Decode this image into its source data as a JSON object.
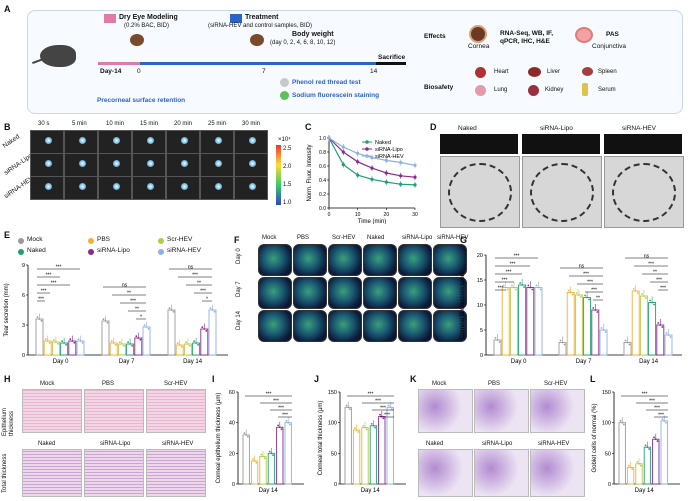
{
  "panels": {
    "A": "A",
    "B": "B",
    "C": "C",
    "D": "D",
    "E": "E",
    "F": "F",
    "G": "G",
    "H": "H",
    "I": "I",
    "J": "J",
    "K": "K",
    "L": "L"
  },
  "schema": {
    "dry_eye": "Dry Eye Modeling",
    "dry_eye_sub": "(0.2% BAC, BID)",
    "treatment": "Treatment",
    "treatment_sub": "(siRNA-HEV and control samples, BID)",
    "body_weight": "Body weight",
    "body_weight_sub": "(day 0, 2, 4, 6, 8, 10, 12)",
    "day_minus14": "Day-14",
    "day0": "0",
    "day7": "7",
    "day14": "14",
    "sacrifice": "Sacrifice",
    "precorneal": "Precorneal surface retention",
    "phenol": "Phenol red thread test",
    "fluor": "Sodium fluorescein staining",
    "effects": "Effects",
    "biosafety": "Biosafety",
    "cornea": "Cornea",
    "assays": "RNA-Seq, WB, IF,",
    "assays2": "qPCR, IHC, H&E",
    "pas": "PAS",
    "conjunctiva": "Conjunctiva",
    "heart": "Heart",
    "liver": "Liver",
    "spleen": "Spleen",
    "lung": "Lung",
    "kidney": "Kidney",
    "serum": "Serum"
  },
  "panelB": {
    "times": [
      "30 s",
      "5 min",
      "10 min",
      "15 min",
      "20 min",
      "25 min",
      "30 min"
    ],
    "rows": [
      "Naked",
      "siRNA-Lipo",
      "siRNA-HEV"
    ],
    "scale_title": "×10⁴",
    "scale_ticks": [
      "2.5",
      "2.0",
      "1.5",
      "1.0"
    ]
  },
  "panelD": {
    "labels": [
      "Naked",
      "siRNA-Lipo",
      "siRNA-HEV"
    ]
  },
  "panelF": {
    "cols": [
      "Mock",
      "PBS",
      "Scr-HEV",
      "Naked",
      "siRNA-Lipo",
      "siRNA-HEV"
    ],
    "rows": [
      "Day 0",
      "Day 7",
      "Day 14"
    ]
  },
  "panelH": {
    "row1_title": "Epithelium thickness",
    "row2_title": "Total thickness",
    "top_labels": [
      "Mock",
      "PBS",
      "Scr-HEV"
    ],
    "bottom_labels": [
      "Naked",
      "siRNA-Lipo",
      "siRNA-HEV"
    ]
  },
  "panelK": {
    "top_labels": [
      "Mock",
      "PBS",
      "Scr-HEV"
    ],
    "bottom_labels": [
      "Naked",
      "siRNA-Lipo",
      "siRNA-HEV"
    ]
  },
  "legend": {
    "items": [
      "Mock",
      "PBS",
      "Scr-HEV",
      "Naked",
      "siRNA-Lipo",
      "siRNA-HEV"
    ],
    "colors": [
      "#9a9a9a",
      "#f2b134",
      "#b7c943",
      "#1f9f72",
      "#8a2a8c",
      "#8fb1e0"
    ]
  },
  "sig": {
    "s3": "***",
    "s2": "**",
    "s1": "*",
    "ns": "ns"
  },
  "chart_data": [
    {
      "id": "C",
      "type": "line",
      "xlabel": "Time (min)",
      "ylabel": "Norm. Fluor. Intensity",
      "x": [
        0,
        5,
        10,
        15,
        20,
        25,
        30
      ],
      "xlim": [
        0,
        30
      ],
      "ylim": [
        0.0,
        1.0
      ],
      "yticks": [
        0.0,
        0.2,
        0.4,
        0.6,
        0.8,
        1.0
      ],
      "xticks": [
        0,
        10,
        20,
        30
      ],
      "legend": "top-right",
      "series": [
        {
          "name": "Naked",
          "color": "#1f9f72",
          "values": [
            1.0,
            0.62,
            0.47,
            0.41,
            0.37,
            0.34,
            0.33
          ]
        },
        {
          "name": "siRNA-Lipo",
          "color": "#8a2a8c",
          "values": [
            1.0,
            0.8,
            0.66,
            0.57,
            0.5,
            0.46,
            0.44
          ]
        },
        {
          "name": "siRNA-HEV",
          "color": "#8fb1e0",
          "values": [
            1.0,
            0.87,
            0.78,
            0.72,
            0.68,
            0.65,
            0.61
          ]
        }
      ]
    },
    {
      "id": "E",
      "type": "bar",
      "ylabel": "Tear secretion (mm)",
      "ylim": [
        0,
        9
      ],
      "yticks": [
        0,
        3,
        6,
        9
      ],
      "categories": [
        "Day 0",
        "Day 7",
        "Day 14"
      ],
      "series": [
        {
          "name": "Mock",
          "values": [
            3.6,
            3.4,
            4.5
          ]
        },
        {
          "name": "PBS",
          "values": [
            1.4,
            1.2,
            1.0
          ]
        },
        {
          "name": "Scr-HEV",
          "values": [
            1.3,
            1.1,
            1.1
          ]
        },
        {
          "name": "Naked",
          "values": [
            1.2,
            1.1,
            1.2
          ]
        },
        {
          "name": "siRNA-Lipo",
          "values": [
            1.4,
            1.7,
            2.6
          ]
        },
        {
          "name": "siRNA-HEV",
          "values": [
            1.4,
            2.8,
            4.5
          ]
        }
      ]
    },
    {
      "id": "G",
      "type": "bar",
      "ylabel": "Corneal fluorescein score",
      "ylim": [
        0,
        20
      ],
      "yticks": [
        0,
        5,
        10,
        15,
        20
      ],
      "categories": [
        "Day 0",
        "Day 7",
        "Day 14"
      ],
      "series": [
        {
          "name": "Mock",
          "values": [
            3.0,
            2.5,
            2.5
          ]
        },
        {
          "name": "PBS",
          "values": [
            13.5,
            12.5,
            12.8
          ]
        },
        {
          "name": "Scr-HEV",
          "values": [
            13.5,
            12.0,
            11.8
          ]
        },
        {
          "name": "Naked",
          "values": [
            14.0,
            11.5,
            10.5
          ]
        },
        {
          "name": "siRNA-Lipo",
          "values": [
            13.5,
            9.0,
            6.0
          ]
        },
        {
          "name": "siRNA-HEV",
          "values": [
            13.5,
            5.0,
            4.0
          ]
        }
      ]
    },
    {
      "id": "I",
      "type": "bar",
      "ylabel": "Corneal epithelium thickness (μm)",
      "ylim": [
        0,
        60
      ],
      "yticks": [
        0,
        20,
        40,
        60
      ],
      "categories": [
        "Day 14"
      ],
      "series": [
        {
          "name": "Mock",
          "values": [
            32
          ]
        },
        {
          "name": "PBS",
          "values": [
            15
          ]
        },
        {
          "name": "Scr-HEV",
          "values": [
            18
          ]
        },
        {
          "name": "Naked",
          "values": [
            20
          ]
        },
        {
          "name": "siRNA-Lipo",
          "values": [
            37
          ]
        },
        {
          "name": "siRNA-HEV",
          "values": [
            40
          ]
        }
      ]
    },
    {
      "id": "J",
      "type": "bar",
      "ylabel": "Corneal total thickness (μm)",
      "ylim": [
        0,
        150
      ],
      "yticks": [
        0,
        50,
        100,
        150
      ],
      "categories": [
        "Day 14"
      ],
      "series": [
        {
          "name": "Mock",
          "values": [
            125
          ]
        },
        {
          "name": "PBS",
          "values": [
            88
          ]
        },
        {
          "name": "Scr-HEV",
          "values": [
            92
          ]
        },
        {
          "name": "Naked",
          "values": [
            95
          ]
        },
        {
          "name": "siRNA-Lipo",
          "values": [
            110
          ]
        },
        {
          "name": "siRNA-HEV",
          "values": [
            125
          ]
        }
      ]
    },
    {
      "id": "L",
      "type": "bar",
      "ylabel": "Goblet cells of normal (%)",
      "ylim": [
        0,
        150
      ],
      "yticks": [
        0,
        50,
        100,
        150
      ],
      "categories": [
        "Day 14"
      ],
      "series": [
        {
          "name": "Mock",
          "values": [
            100
          ]
        },
        {
          "name": "PBS",
          "values": [
            27
          ]
        },
        {
          "name": "Scr-HEV",
          "values": [
            33
          ]
        },
        {
          "name": "Naked",
          "values": [
            60
          ]
        },
        {
          "name": "siRNA-Lipo",
          "values": [
            73
          ]
        },
        {
          "name": "siRNA-HEV",
          "values": [
            103
          ]
        }
      ]
    }
  ]
}
